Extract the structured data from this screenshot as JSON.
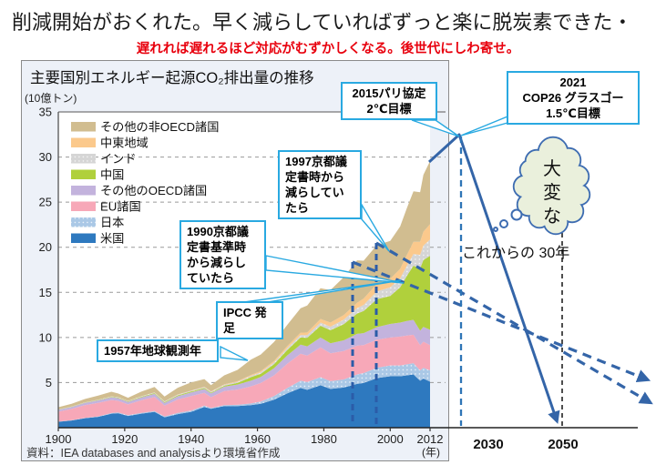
{
  "page": {
    "title": "削減開始がおくれた。早く減らしていればずっと楽に脱炭素できた・",
    "subtitle": "遅れれば遅れるほど対応がむずかしくなる。後世代にしわ寄せ。"
  },
  "panel": {
    "chart_title": "主要国別エネルギー起源CO₂排出量の推移",
    "unit_label": "(10億トン)",
    "source": "資料：IEA databases and analysisより環境省作成",
    "x_axis_suffix": "(年)"
  },
  "chart_data": {
    "type": "area",
    "stacked": true,
    "title": "主要国別エネルギー起源CO2排出量の推移",
    "ylabel": "10億トン",
    "ylim": [
      0,
      35
    ],
    "yticks": [
      5,
      10,
      15,
      20,
      25,
      30,
      35
    ],
    "xticks": [
      1900,
      1920,
      1940,
      1960,
      1980,
      2000,
      2012
    ],
    "grid": "dashed-horizontal",
    "legend_position": "top-left-inside",
    "legend_order": "top-of-stack-first",
    "x": [
      1900,
      1904,
      1908,
      1912,
      1916,
      1918,
      1921,
      1925,
      1929,
      1932,
      1936,
      1940,
      1944,
      1946,
      1950,
      1954,
      1958,
      1961,
      1965,
      1969,
      1973,
      1975,
      1979,
      1982,
      1986,
      1990,
      1992,
      1996,
      2000,
      2003,
      2005,
      2007,
      2009,
      2010,
      2012
    ],
    "series": [
      {
        "key": "us",
        "name": "米国",
        "color": "#2e79bf",
        "pattern": "none",
        "values": [
          0.66,
          0.8,
          1.05,
          1.2,
          1.55,
          1.6,
          1.3,
          1.55,
          1.75,
          1.15,
          1.5,
          1.75,
          2.3,
          2.1,
          2.4,
          2.4,
          2.5,
          2.65,
          3.1,
          3.8,
          4.4,
          4.2,
          4.7,
          4.3,
          4.45,
          4.85,
          4.95,
          5.5,
          5.7,
          5.7,
          5.8,
          5.9,
          5.2,
          5.45,
          5.1
        ]
      },
      {
        "key": "japan",
        "name": "日本",
        "color": "#aac8e6",
        "pattern": "dots",
        "values": [
          0.02,
          0.03,
          0.04,
          0.05,
          0.07,
          0.08,
          0.08,
          0.09,
          0.1,
          0.1,
          0.13,
          0.15,
          0.15,
          0.08,
          0.1,
          0.13,
          0.18,
          0.25,
          0.4,
          0.6,
          0.8,
          0.85,
          0.9,
          0.85,
          0.9,
          1.05,
          1.1,
          1.15,
          1.2,
          1.2,
          1.22,
          1.25,
          1.15,
          1.18,
          1.25
        ]
      },
      {
        "key": "eu",
        "name": "EU諸国",
        "color": "#f7a8b8",
        "pattern": "none",
        "values": [
          1.1,
          1.25,
          1.4,
          1.5,
          1.45,
          1.3,
          1.2,
          1.4,
          1.55,
          1.2,
          1.5,
          1.6,
          1.4,
          1.2,
          1.55,
          1.7,
          1.9,
          2.05,
          2.3,
          2.7,
          3.0,
          2.95,
          3.3,
          3.1,
          3.15,
          3.2,
          3.1,
          3.1,
          3.1,
          3.2,
          3.2,
          3.15,
          2.8,
          2.9,
          2.8
        ]
      },
      {
        "key": "oecd_other",
        "name": "その他のOECD諸国",
        "color": "#c3b3dd",
        "pattern": "none",
        "values": [
          0.2,
          0.22,
          0.25,
          0.28,
          0.3,
          0.3,
          0.28,
          0.32,
          0.36,
          0.3,
          0.36,
          0.4,
          0.45,
          0.42,
          0.5,
          0.55,
          0.62,
          0.68,
          0.8,
          0.92,
          1.0,
          1.02,
          1.1,
          1.1,
          1.18,
          1.3,
          1.33,
          1.4,
          1.5,
          1.55,
          1.6,
          1.65,
          1.6,
          1.65,
          1.7
        ]
      },
      {
        "key": "china",
        "name": "中国",
        "color": "#b0d03c",
        "pattern": "none",
        "values": [
          0.02,
          0.02,
          0.03,
          0.04,
          0.05,
          0.05,
          0.05,
          0.06,
          0.07,
          0.07,
          0.09,
          0.1,
          0.1,
          0.08,
          0.1,
          0.18,
          0.4,
          0.35,
          0.45,
          0.6,
          0.8,
          0.95,
          1.3,
          1.45,
          1.8,
          2.25,
          2.45,
          3.1,
          3.1,
          3.9,
          5.0,
          6.0,
          6.9,
          7.4,
          8.2
        ]
      },
      {
        "key": "india",
        "name": "インド",
        "color": "#d5d5d5",
        "pattern": "dots",
        "values": [
          0.02,
          0.03,
          0.03,
          0.04,
          0.05,
          0.05,
          0.05,
          0.06,
          0.06,
          0.07,
          0.08,
          0.09,
          0.1,
          0.1,
          0.1,
          0.12,
          0.14,
          0.16,
          0.2,
          0.24,
          0.28,
          0.3,
          0.35,
          0.4,
          0.5,
          0.6,
          0.68,
          0.85,
          0.95,
          1.0,
          1.1,
          1.3,
          1.5,
          1.6,
          1.8
        ]
      },
      {
        "key": "middle_east",
        "name": "中東地域",
        "color": "#fbc98c",
        "pattern": "none",
        "values": [
          0.0,
          0.0,
          0.0,
          0.0,
          0.01,
          0.01,
          0.01,
          0.01,
          0.02,
          0.02,
          0.02,
          0.03,
          0.04,
          0.04,
          0.05,
          0.07,
          0.1,
          0.12,
          0.15,
          0.2,
          0.25,
          0.28,
          0.4,
          0.45,
          0.5,
          0.6,
          0.7,
          0.85,
          0.95,
          1.05,
          1.2,
          1.35,
          1.45,
          1.55,
          1.7
        ]
      },
      {
        "key": "non_oecd_other",
        "name": "その他の非OECD諸国",
        "color": "#d1bd90",
        "pattern": "none",
        "values": [
          0.25,
          0.3,
          0.38,
          0.45,
          0.5,
          0.4,
          0.35,
          0.5,
          0.6,
          0.55,
          0.75,
          0.9,
          0.85,
          0.7,
          1.0,
          1.25,
          1.7,
          1.85,
          2.1,
          2.35,
          2.7,
          3.0,
          3.4,
          3.6,
          4.2,
          4.7,
          4.2,
          4.3,
          4.2,
          4.7,
          5.2,
          5.6,
          5.5,
          6.3,
          7.0
        ]
      }
    ],
    "marker_lines": [
      {
        "year": 1990,
        "meaning": "京都議定書基準年"
      },
      {
        "year": 1997,
        "meaning": "京都議定書採択"
      }
    ]
  },
  "annotations": {
    "callouts": [
      {
        "id": "obs1957",
        "lines": [
          "1957年地球観測年"
        ]
      },
      {
        "id": "ipcc",
        "lines": [
          "IPCC 発足"
        ]
      },
      {
        "id": "kyoto1990",
        "lines": [
          "1990京都議",
          "定書基準時",
          "から減らし",
          "ていたら"
        ]
      },
      {
        "id": "kyoto1997",
        "lines": [
          "1997京都議",
          "定書時から",
          "減らしてい",
          "たら"
        ]
      },
      {
        "id": "paris2015",
        "lines": [
          "2015パリ協定",
          "2℃目標"
        ]
      },
      {
        "id": "cop26",
        "lines": [
          "2021",
          "COP26 グラスゴー",
          "1.5℃目標"
        ]
      }
    ],
    "thought_cloud": "大変な",
    "future_label": "これからの 30年",
    "future_ticks": [
      "2030",
      "2050"
    ]
  },
  "colors": {
    "subtitle_red": "#e8000d",
    "callout_cyan": "#29a9e1",
    "projection_blue": "#3465a8",
    "marker_navy": "#2b5ca8",
    "now_line_blue": "#2e75b6",
    "cloud_fill": "#eaf0dc",
    "panel_bg": "#edf1f8"
  }
}
